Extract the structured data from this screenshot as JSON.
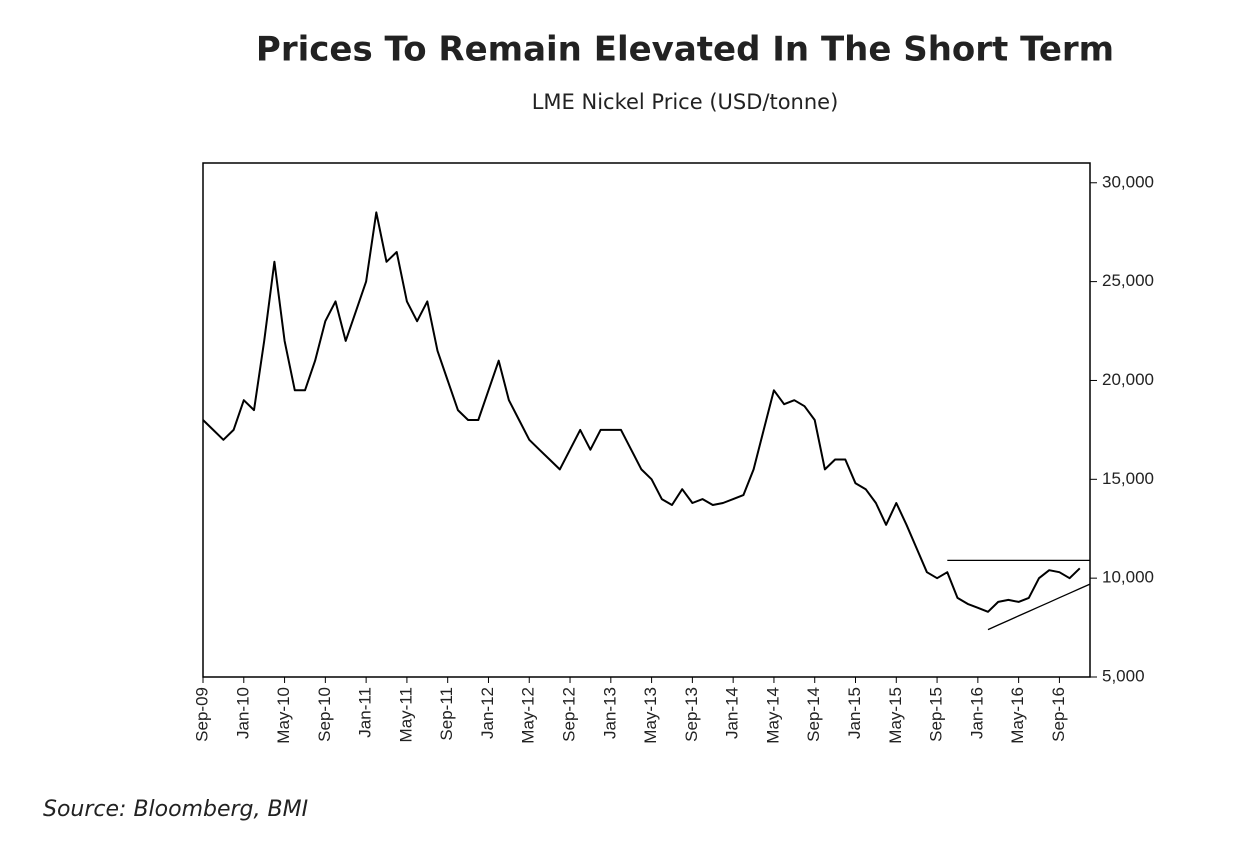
{
  "chart_data": {
    "type": "line",
    "title": "Prices To Remain Elevated In The Short Term",
    "subtitle": "LME Nickel Price (USD/tonne)",
    "source": "Source: Bloomberg, BMI",
    "categories": [
      "Sep-09",
      null,
      null,
      null,
      "Jan-10",
      null,
      null,
      null,
      "May-10",
      null,
      null,
      null,
      "Sep-10",
      null,
      null,
      null,
      "Jan-11",
      null,
      null,
      null,
      "May-11",
      null,
      null,
      null,
      "Sep-11",
      null,
      null,
      null,
      "Jan-12",
      null,
      null,
      null,
      "May-12",
      null,
      null,
      null,
      "Sep-12",
      null,
      null,
      null,
      "Jan-13",
      null,
      null,
      null,
      "May-13",
      null,
      null,
      null,
      "Sep-13",
      null,
      null,
      null,
      "Jan-14",
      null,
      null,
      null,
      "May-14",
      null,
      null,
      null,
      "Sep-14",
      null,
      null,
      null,
      "Jan-15",
      null,
      null,
      null,
      "May-15",
      null,
      null,
      null,
      "Sep-15",
      null,
      null,
      null,
      "Jan-16",
      null,
      null,
      null,
      "May-16",
      null,
      null,
      null,
      "Sep-16",
      null,
      null,
      null
    ],
    "series": [
      {
        "color": "#000000",
        "width": 2,
        "values": [
          18000,
          17500,
          17000,
          17500,
          19000,
          18500,
          22000,
          26000,
          22000,
          19500,
          19500,
          21000,
          23000,
          24000,
          22000,
          23500,
          25000,
          28500,
          26000,
          26500,
          24000,
          23000,
          24000,
          21500,
          20000,
          18500,
          18000,
          18000,
          19500,
          21000,
          19000,
          18000,
          17000,
          16500,
          16000,
          15500,
          16500,
          17500,
          16500,
          17500,
          17500,
          17500,
          16500,
          15500,
          15000,
          14000,
          13700,
          14500,
          13800,
          14000,
          13700,
          13800,
          14000,
          14200,
          15500,
          17500,
          19500,
          18800,
          19000,
          18700,
          18000,
          15500,
          16000,
          16000,
          14800,
          14500,
          13800,
          12700,
          13800,
          12700,
          11500,
          10300,
          10000,
          10300,
          9000,
          8700,
          8500,
          8300,
          8800,
          8900,
          8800,
          9000,
          10000,
          10400,
          10300,
          10000,
          10500,
          null
        ]
      },
      {
        "color": "#000000",
        "width": 1.3,
        "values": [
          null,
          null,
          null,
          null,
          null,
          null,
          null,
          null,
          null,
          null,
          null,
          null,
          null,
          null,
          null,
          null,
          null,
          null,
          null,
          null,
          null,
          null,
          null,
          null,
          null,
          null,
          null,
          null,
          null,
          null,
          null,
          null,
          null,
          null,
          null,
          null,
          null,
          null,
          null,
          null,
          null,
          null,
          null,
          null,
          null,
          null,
          null,
          null,
          null,
          null,
          null,
          null,
          null,
          null,
          null,
          null,
          null,
          null,
          null,
          null,
          null,
          null,
          null,
          null,
          null,
          null,
          null,
          null,
          null,
          null,
          null,
          null,
          null,
          10900,
          10900,
          10900,
          10900,
          10900,
          10900,
          10900,
          10900,
          10900,
          10900,
          10900,
          10900,
          10900,
          10900,
          10900
        ]
      },
      {
        "color": "#000000",
        "width": 1.3,
        "values": [
          null,
          null,
          null,
          null,
          null,
          null,
          null,
          null,
          null,
          null,
          null,
          null,
          null,
          null,
          null,
          null,
          null,
          null,
          null,
          null,
          null,
          null,
          null,
          null,
          null,
          null,
          null,
          null,
          null,
          null,
          null,
          null,
          null,
          null,
          null,
          null,
          null,
          null,
          null,
          null,
          null,
          null,
          null,
          null,
          null,
          null,
          null,
          null,
          null,
          null,
          null,
          null,
          null,
          null,
          null,
          null,
          null,
          null,
          null,
          null,
          null,
          null,
          null,
          null,
          null,
          null,
          null,
          null,
          null,
          null,
          null,
          null,
          null,
          null,
          null,
          null,
          null,
          7400,
          7630,
          7860,
          8090,
          8320,
          8550,
          8780,
          9010,
          9240,
          9470,
          9700
        ]
      }
    ],
    "ylim": [
      5000,
      31000
    ],
    "yticks": [
      {
        "value": 5000,
        "label": "5,000"
      },
      {
        "value": 10000,
        "label": "10,000"
      },
      {
        "value": 15000,
        "label": "15,000"
      },
      {
        "value": 20000,
        "label": "20,000"
      },
      {
        "value": 25000,
        "label": "25,000"
      },
      {
        "value": 30000,
        "label": "30,000"
      }
    ]
  }
}
